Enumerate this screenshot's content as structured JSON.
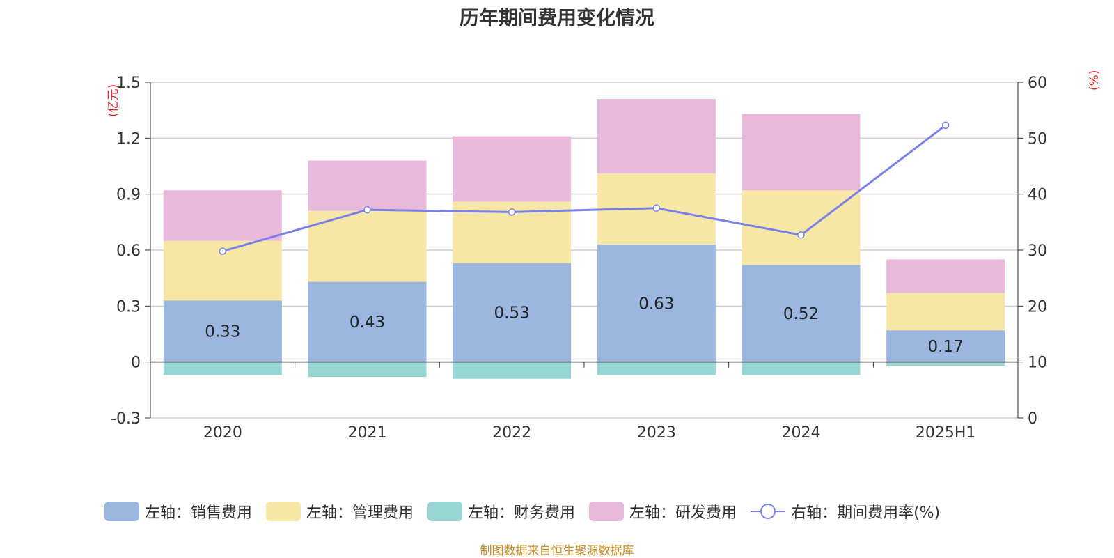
{
  "chart_data": {
    "type": "bar",
    "title": "历年期间费用变化情况",
    "categories": [
      "2020",
      "2021",
      "2022",
      "2023",
      "2024",
      "2025H1"
    ],
    "stacked": true,
    "left_axis": {
      "unit": "(亿元)",
      "ylim": [
        -0.3,
        1.5
      ],
      "ticks": [
        "1.5",
        "1.2",
        "0.9",
        "0.6",
        "0.3",
        "0",
        "-0.3"
      ]
    },
    "right_axis": {
      "unit": "(%)",
      "ylim": [
        0,
        60
      ],
      "ticks": [
        "60",
        "50",
        "40",
        "30",
        "20",
        "10",
        "0"
      ]
    },
    "series": [
      {
        "name": "左轴：销售费用",
        "axis": "left",
        "color": "#9bb7e0",
        "values": [
          0.33,
          0.43,
          0.53,
          0.63,
          0.52,
          0.17
        ],
        "labels": [
          "0.33",
          "0.43",
          "0.53",
          "0.63",
          "0.52",
          "0.17"
        ]
      },
      {
        "name": "左轴：管理费用",
        "axis": "left",
        "color": "#f7e7a7",
        "values": [
          0.32,
          0.38,
          0.33,
          0.38,
          0.4,
          0.2
        ]
      },
      {
        "name": "左轴：财务费用",
        "axis": "left",
        "color": "#97d4d4",
        "values": [
          -0.07,
          -0.08,
          -0.09,
          -0.07,
          -0.07,
          -0.02
        ]
      },
      {
        "name": "左轴：研发费用",
        "axis": "left",
        "color": "#e8b9da",
        "values": [
          0.27,
          0.27,
          0.35,
          0.4,
          0.41,
          0.18
        ]
      },
      {
        "name": "右轴：期间费用率(%)",
        "axis": "right",
        "type": "line",
        "color": "#7b7fe8",
        "values": [
          29.8,
          37.2,
          36.8,
          37.5,
          32.7,
          52.3
        ]
      }
    ],
    "grid": true,
    "legend_position": "bottom"
  },
  "footer": "制图数据来自恒生聚源数据库"
}
